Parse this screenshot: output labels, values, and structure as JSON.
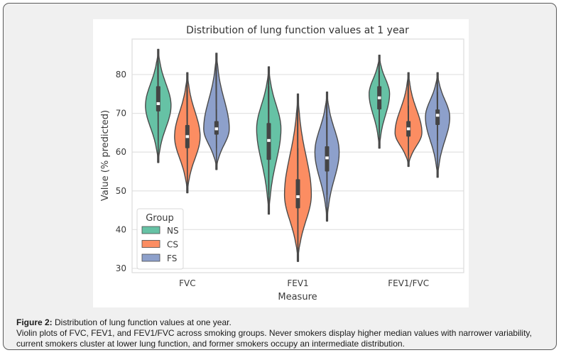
{
  "caption": {
    "label": "Figure 2:",
    "title": " Distribution of lung function values at one year.",
    "body": "Violin plots of FVC, FEV1, and FEV1/FVC across smoking groups. Never smokers display higher median values with narrower variability, current smokers cluster at lower lung function, and former smokers occupy an intermediate distribution."
  },
  "chart_data": {
    "type": "violin",
    "title": "Distribution of lung function values at 1 year",
    "xlabel": "Measure",
    "ylabel": "Value (% predicted)",
    "ylim": [
      29,
      89
    ],
    "yticks": [
      "30",
      "40",
      "50",
      "60",
      "70",
      "80"
    ],
    "ytick_values": [
      30,
      40,
      50,
      60,
      70,
      80
    ],
    "grid": true,
    "categories": [
      "FVC",
      "FEV1",
      "FEV1/FVC"
    ],
    "legend": {
      "title": "Group",
      "placement": "lower-left",
      "entries": [
        "NS",
        "CS",
        "FS"
      ]
    },
    "colors": {
      "NS": "#66c2a5",
      "CS": "#fc8d62",
      "FS": "#8da0cb",
      "outline": "#4a4a4a",
      "grid": "#e4e4e4"
    },
    "series": [
      {
        "name": "NS",
        "violins": [
          {
            "category": "FVC",
            "min": 57.3,
            "q1": 70.5,
            "median": 72.5,
            "q3": 77.0,
            "max": 86.5,
            "whisker_low": 63.0,
            "whisker_high": 83.0,
            "peak": 72.0,
            "width": 1.0
          },
          {
            "category": "FEV1",
            "min": 44.0,
            "q1": 58.0,
            "median": 63.0,
            "q3": 67.5,
            "max": 82.0,
            "whisker_low": 49.0,
            "whisker_high": 77.0,
            "peak": 66.0,
            "width": 0.95
          },
          {
            "category": "FEV1/FVC",
            "min": 61.0,
            "q1": 71.0,
            "median": 74.0,
            "q3": 77.0,
            "max": 85.0,
            "whisker_low": 65.0,
            "whisker_high": 81.0,
            "peak": 75.0,
            "width": 0.8
          }
        ]
      },
      {
        "name": "CS",
        "violins": [
          {
            "category": "FVC",
            "min": 49.5,
            "q1": 61.0,
            "median": 64.0,
            "q3": 67.0,
            "max": 80.5,
            "whisker_low": 52.0,
            "whisker_high": 76.0,
            "peak": 64.0,
            "width": 1.0
          },
          {
            "category": "FEV1",
            "min": 31.8,
            "q1": 45.5,
            "median": 48.5,
            "q3": 53.0,
            "max": 75.0,
            "whisker_low": 35.0,
            "whisker_high": 61.0,
            "peak": 49.0,
            "width": 1.05
          },
          {
            "category": "FEV1/FVC",
            "min": 56.3,
            "q1": 64.0,
            "median": 66.0,
            "q3": 68.0,
            "max": 80.5,
            "whisker_low": 59.0,
            "whisker_high": 72.0,
            "peak": 65.0,
            "width": 1.05
          }
        ]
      },
      {
        "name": "FS",
        "violins": [
          {
            "category": "FVC",
            "min": 55.5,
            "q1": 64.5,
            "median": 66.0,
            "q3": 68.0,
            "max": 85.5,
            "whisker_low": 61.0,
            "whisker_high": 71.0,
            "peak": 66.0,
            "width": 1.0
          },
          {
            "category": "FEV1",
            "min": 42.2,
            "q1": 55.0,
            "median": 58.5,
            "q3": 61.5,
            "max": 75.5,
            "whisker_low": 49.0,
            "whisker_high": 69.0,
            "peak": 60.0,
            "width": 0.95
          },
          {
            "category": "FEV1/FVC",
            "min": 53.5,
            "q1": 67.0,
            "median": 69.5,
            "q3": 71.0,
            "max": 80.5,
            "whisker_low": 63.0,
            "whisker_high": 75.5,
            "peak": 69.0,
            "width": 0.95
          }
        ]
      }
    ]
  }
}
